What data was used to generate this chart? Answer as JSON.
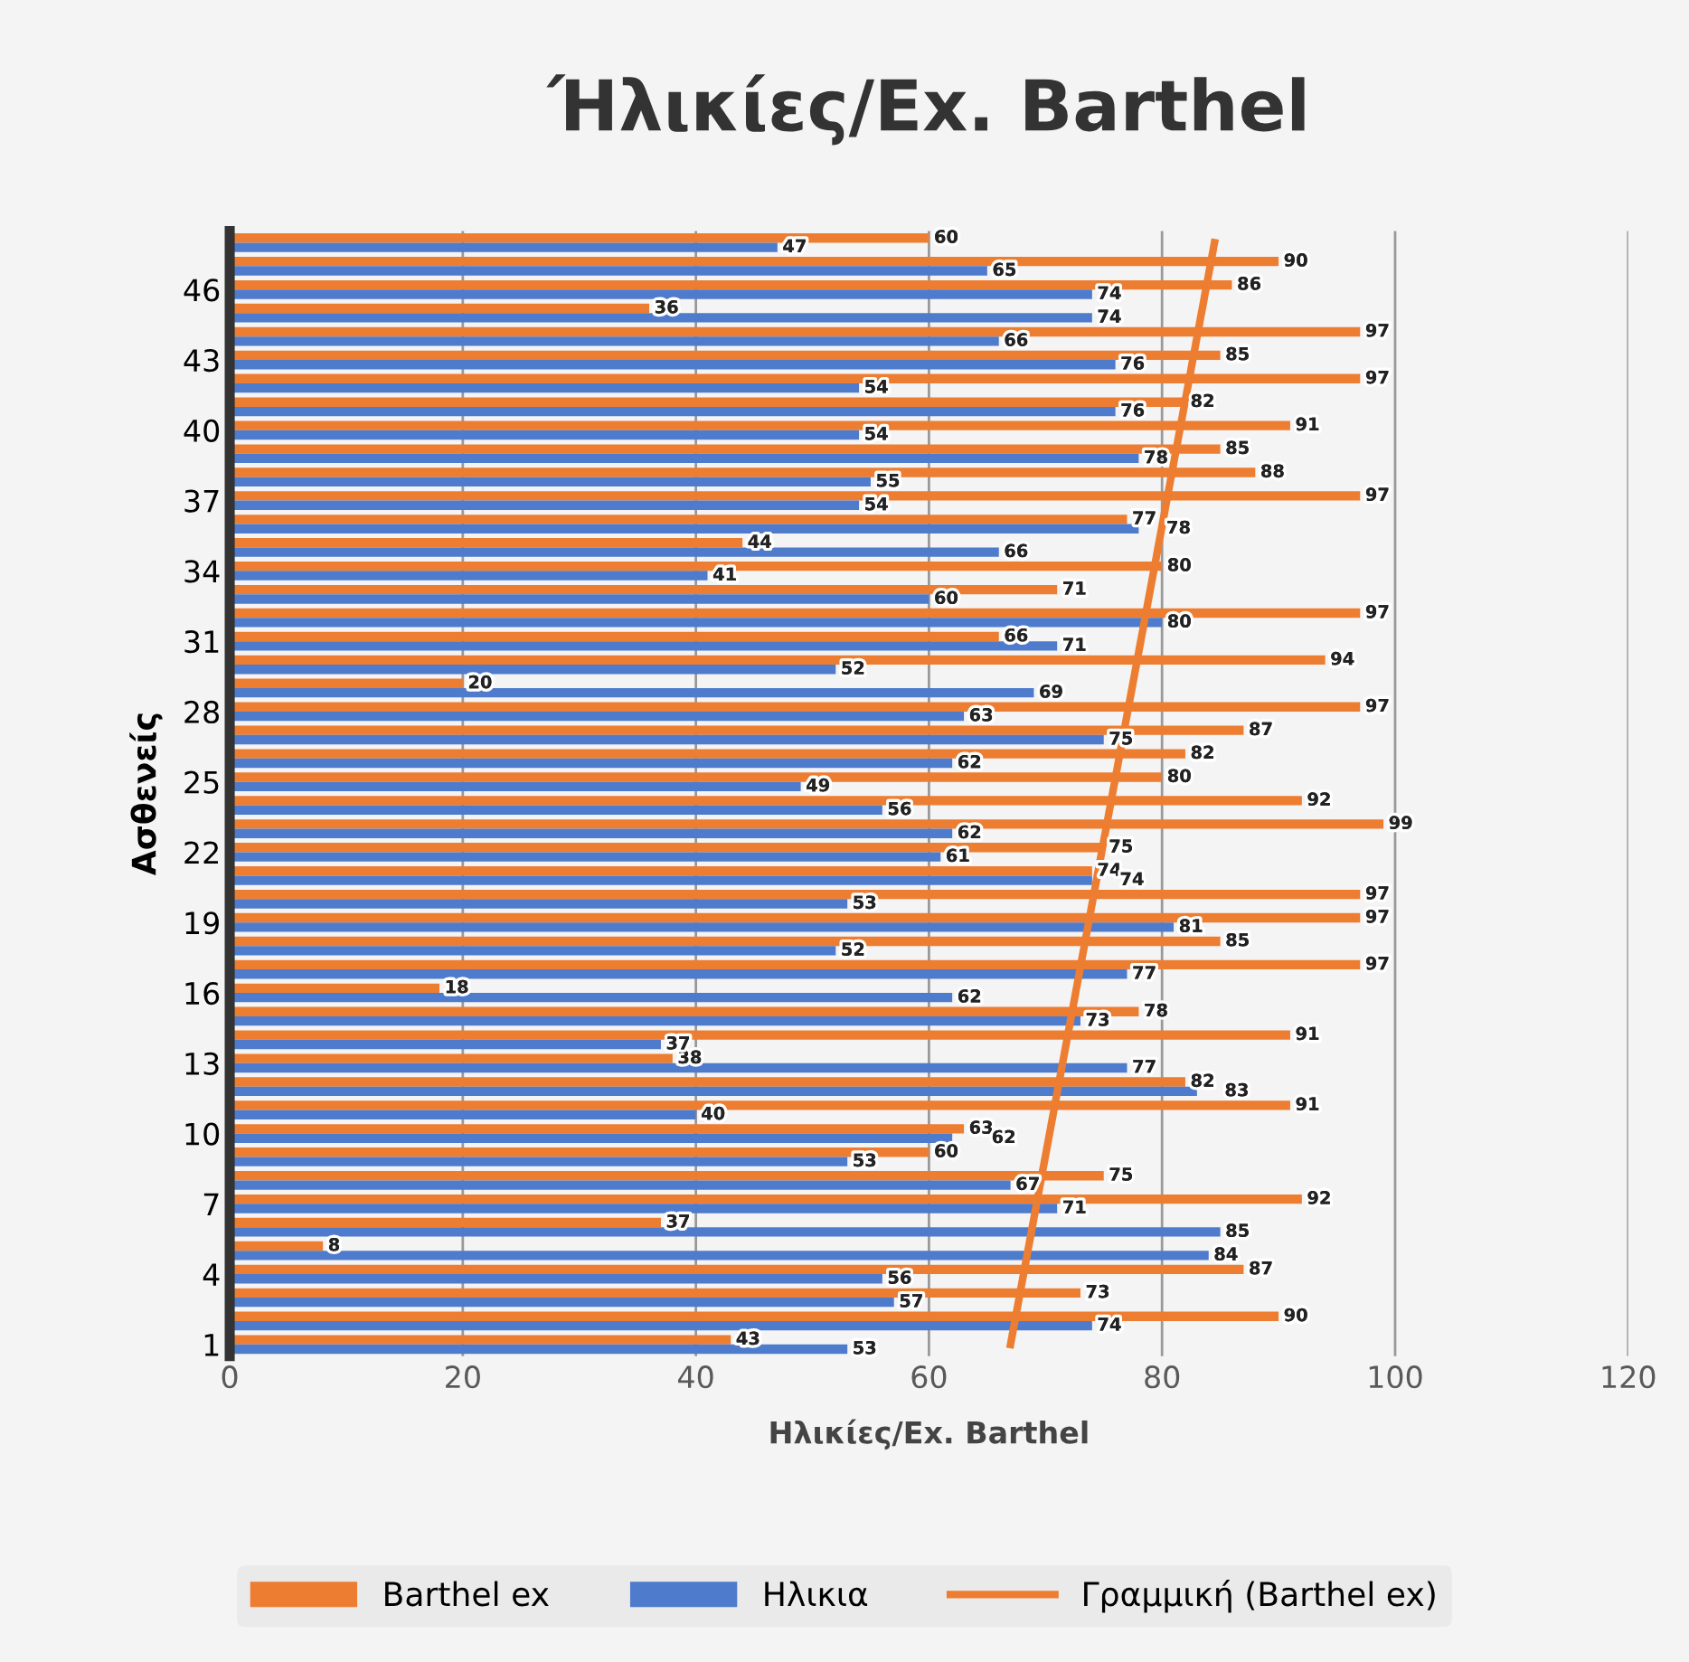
{
  "chart_data": {
    "type": "bar",
    "orientation": "horizontal",
    "title": "Ήλικίες/Ex. Barthel",
    "xlabel": "Ηλικίες/Ex. Barthel",
    "ylabel": "Ασθενείς",
    "categories": [
      null,
      null,
      "46",
      null,
      null,
      "43",
      null,
      null,
      "40",
      null,
      null,
      "37",
      null,
      null,
      "34",
      null,
      null,
      "31",
      null,
      null,
      "28",
      null,
      null,
      "25",
      null,
      null,
      "22",
      null,
      null,
      "19",
      null,
      null,
      "16",
      null,
      null,
      "13",
      null,
      null,
      "10",
      null,
      null,
      "7",
      null,
      null,
      "4",
      null,
      null,
      "1"
    ],
    "series": [
      {
        "name": "Barthel ex",
        "type": "bar",
        "color": "#ed7d31",
        "values": [
          60,
          90,
          86,
          36,
          97,
          85,
          97,
          82,
          91,
          85,
          88,
          97,
          77,
          44,
          80,
          71,
          97,
          66,
          94,
          20,
          97,
          87,
          82,
          80,
          92,
          99,
          75,
          74,
          97,
          97,
          85,
          97,
          18,
          78,
          91,
          38,
          82,
          91,
          63,
          60,
          75,
          92,
          37,
          8,
          87,
          73,
          90,
          43
        ],
        "value_labels": [
          "60",
          "90",
          "86",
          "36",
          "97",
          "85",
          "97",
          "82",
          "91",
          "85",
          "88",
          "97",
          "77",
          "44",
          "80",
          "71",
          "97",
          "66",
          "94",
          "20",
          "97",
          "87",
          "82",
          "80",
          "92",
          "99",
          "75",
          "74",
          "97",
          "97",
          "85",
          "97",
          "18",
          "78",
          "91",
          "38",
          "82",
          "91",
          "63",
          "60",
          "75",
          "92",
          "37",
          "8",
          "87",
          "73",
          "90",
          "43"
        ]
      },
      {
        "name": "Ηλικια",
        "type": "bar",
        "color": "#4f7bcc",
        "values": [
          47,
          65,
          74,
          74,
          66,
          76,
          54,
          76,
          54,
          78,
          55,
          54,
          78,
          66,
          41,
          60,
          80,
          71,
          52,
          69,
          63,
          75,
          62,
          49,
          56,
          62,
          61,
          74,
          53,
          81,
          52,
          77,
          62,
          73,
          37,
          77,
          83,
          40,
          62,
          53,
          67,
          71,
          85,
          84,
          56,
          57,
          74,
          53
        ],
        "value_labels": [
          "47",
          "65",
          "74",
          "74",
          "66",
          "76",
          "54",
          "76",
          "54",
          "78",
          "55",
          "54",
          "78",
          "66",
          "41",
          "60",
          "80",
          "71",
          "52",
          "69",
          "63",
          "75",
          "62",
          "49",
          "56",
          "62",
          "61",
          "74",
          "53",
          "81",
          "52",
          "77",
          "62",
          "73",
          "37",
          "77",
          "83",
          "40",
          "62",
          "53",
          "67",
          "71",
          "85",
          "84",
          "56",
          "57",
          "74",
          "53"
        ]
      },
      {
        "name": "Γραμμική (Barthel ex)",
        "type": "line",
        "color": "#ed7d31",
        "values": [
          84.5,
          null,
          null,
          null,
          null,
          null,
          null,
          null,
          null,
          null,
          null,
          null,
          null,
          null,
          null,
          null,
          null,
          null,
          null,
          null,
          null,
          null,
          null,
          null,
          null,
          null,
          null,
          null,
          null,
          null,
          null,
          null,
          null,
          null,
          null,
          null,
          null,
          null,
          null,
          null,
          null,
          null,
          null,
          null,
          null,
          null,
          null,
          67
        ]
      }
    ],
    "xlim": [
      0,
      120
    ],
    "xticks": [
      0,
      20,
      40,
      60,
      80,
      100,
      120
    ],
    "grid": "x",
    "legend": "bottom"
  }
}
